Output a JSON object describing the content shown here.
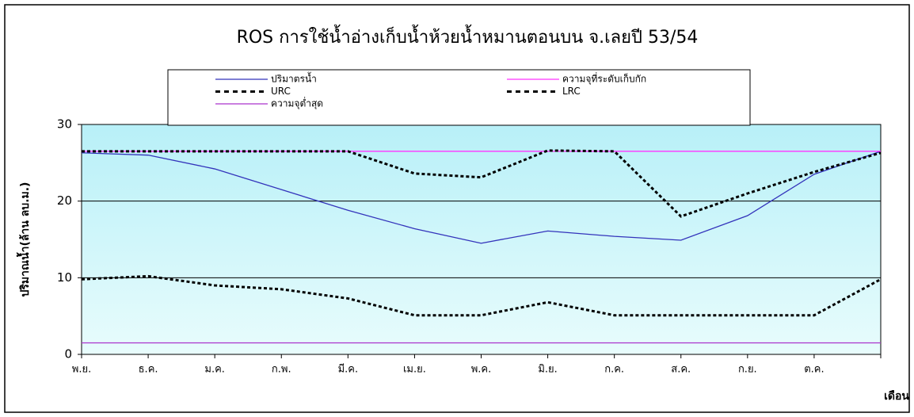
{
  "chart_data": {
    "type": "line",
    "title": "ROS การใช้น้ำอ่างเก็บน้ำห้วยน้ำหมานตอนบน จ.เลยปี 53/54",
    "y_label": "ปริมาณน้ำ(ล้าน ลบ.ม.)",
    "x_label": "เดือน",
    "categories": [
      "พ.ย.",
      "ธ.ค.",
      "ม.ค.",
      "ก.พ.",
      "มี.ค.",
      "เม.ย.",
      "พ.ค.",
      "มิ.ย.",
      "ก.ค.",
      "ส.ค.",
      "ก.ย.",
      "ต.ค.",
      null
    ],
    "series": [
      {
        "name": "ปริมาตรน้ำ",
        "color": "#3333bb",
        "dash": false,
        "values": [
          26.3,
          26.0,
          24.2,
          21.5,
          18.8,
          16.4,
          14.5,
          16.1,
          15.4,
          14.9,
          18.1,
          23.5,
          26.5
        ]
      },
      {
        "name": "ความจุที่ระดับเก็บกัก",
        "color": "#ff33ff",
        "dash": false,
        "values": [
          26.5,
          26.5,
          26.5,
          26.5,
          26.5,
          26.5,
          26.5,
          26.5,
          26.5,
          26.5,
          26.5,
          26.5,
          26.5
        ]
      },
      {
        "name": "URC",
        "color": "#000000",
        "dash": true,
        "values": [
          26.5,
          26.5,
          26.5,
          26.5,
          26.5,
          23.6,
          23.1,
          26.6,
          26.5,
          18.0,
          21.0,
          23.8,
          26.3
        ]
      },
      {
        "name": "LRC",
        "color": "#000000",
        "dash": true,
        "values": [
          9.8,
          10.2,
          9.0,
          8.5,
          7.3,
          5.1,
          5.1,
          6.8,
          5.1,
          5.1,
          5.1,
          5.1,
          9.8
        ]
      },
      {
        "name": "ความจุต่ำสุด",
        "color": "#aa33cc",
        "dash": false,
        "values": [
          1.5,
          1.5,
          1.5,
          1.5,
          1.5,
          1.5,
          1.5,
          1.5,
          1.5,
          1.5,
          1.5,
          1.5,
          1.5
        ]
      }
    ],
    "ylim": [
      0,
      30
    ],
    "yticks": [
      0,
      10,
      20,
      30
    ],
    "grid": true
  }
}
